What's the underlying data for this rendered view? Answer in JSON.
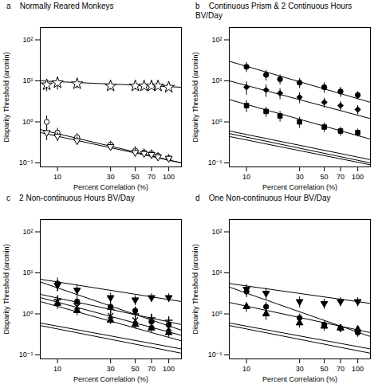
{
  "chart_data": [
    {
      "type": "line",
      "title": "a    Normally Reared Monkeys",
      "xlabel": "Percent Correlation (%)",
      "ylabel": "Disparity Threshold (arcmin)",
      "log": true,
      "xlim": [
        7,
        130
      ],
      "ylim": [
        0.08,
        200
      ],
      "xticks": [
        10,
        30,
        50,
        70,
        100
      ],
      "yticks": [
        {
          "value": 0.1,
          "label": "10⁻¹"
        },
        {
          "value": 1,
          "label": "10⁰"
        },
        {
          "value": 10,
          "label": "10¹"
        },
        {
          "value": 100,
          "label": "10²"
        }
      ],
      "series": [
        {
          "type": "line",
          "color": "black",
          "x": [
            7,
            130
          ],
          "values": [
            10.0,
            7.0
          ]
        },
        {
          "type": "scatter",
          "color": "black",
          "marker": "star_open",
          "x": [
            8,
            10,
            15,
            30,
            50,
            60,
            70,
            80,
            100
          ],
          "values": [
            8.0,
            9.0,
            8.5,
            7.5,
            7.5,
            7.5,
            7.5,
            7.5,
            7.0
          ],
          "yerr": [
            2.5,
            3.0,
            2.0,
            1.5,
            1.5,
            1.0,
            1.0,
            1.0,
            0.8
          ]
        },
        {
          "type": "line",
          "color": "black",
          "x": [
            7,
            130
          ],
          "values": [
            0.65,
            0.1
          ]
        },
        {
          "type": "scatter",
          "color": "black",
          "marker": "circle_open",
          "x": [
            8,
            10,
            15,
            30,
            50,
            60,
            70,
            80,
            100
          ],
          "values": [
            1.0,
            0.55,
            0.42,
            0.28,
            0.2,
            0.18,
            0.17,
            0.15,
            0.13
          ],
          "yerr": [
            0.4,
            0.15,
            0.1,
            0.06,
            0.05,
            0.04,
            0.04,
            0.03,
            0.03
          ]
        },
        {
          "type": "line",
          "color": "black",
          "x": [
            7,
            130
          ],
          "values": [
            0.55,
            0.1
          ]
        },
        {
          "type": "scatter",
          "color": "black",
          "marker": "triangle_down_open",
          "x": [
            8,
            10,
            15,
            30,
            50,
            60,
            70,
            80,
            100
          ],
          "values": [
            0.55,
            0.45,
            0.35,
            0.25,
            0.18,
            0.17,
            0.16,
            0.14,
            0.13
          ],
          "yerr": [
            0.2,
            0.12,
            0.08,
            0.05,
            0.04,
            0.03,
            0.03,
            0.02,
            0.02
          ]
        }
      ]
    },
    {
      "type": "line",
      "title": "b    Continuous Prism & 2 Continuous Hours BV/Day",
      "xlabel": "Percent Correlation (%)",
      "ylabel": "Disparity Threshold (arcmin)",
      "log": true,
      "xlim": [
        7,
        130
      ],
      "ylim": [
        0.08,
        200
      ],
      "xticks": [
        10,
        30,
        50,
        70,
        100
      ],
      "yticks": [
        {
          "value": 0.1,
          "label": "10⁻¹"
        },
        {
          "value": 1,
          "label": "10⁰"
        },
        {
          "value": 10,
          "label": "10¹"
        },
        {
          "value": 100,
          "label": "10²"
        }
      ],
      "series": [
        {
          "type": "line",
          "color": "black",
          "x": [
            7,
            130
          ],
          "values": [
            30.0,
            3.0
          ]
        },
        {
          "type": "scatter",
          "color": "black",
          "marker": "circle",
          "x": [
            10,
            15,
            20,
            30,
            50,
            70,
            100
          ],
          "values": [
            22.0,
            14.0,
            11.0,
            9.0,
            7.0,
            5.5,
            4.5
          ],
          "yerr": [
            6.0,
            4.0,
            3.0,
            2.5,
            2.0,
            1.5,
            1.0
          ]
        },
        {
          "type": "line",
          "color": "black",
          "x": [
            7,
            130
          ],
          "values": [
            10.0,
            1.2
          ]
        },
        {
          "type": "scatter",
          "color": "black",
          "marker": "diamond",
          "x": [
            10,
            15,
            20,
            30,
            50,
            70,
            100
          ],
          "values": [
            7.0,
            6.0,
            5.0,
            4.0,
            3.0,
            2.5,
            2.0
          ],
          "yerr": [
            2.5,
            2.0,
            1.5,
            1.2,
            0.8,
            0.6,
            0.5
          ]
        },
        {
          "type": "line",
          "color": "black",
          "x": [
            7,
            130
          ],
          "values": [
            3.5,
            0.38
          ]
        },
        {
          "type": "scatter",
          "color": "black",
          "marker": "square",
          "x": [
            10,
            15,
            20,
            30,
            50,
            70,
            100
          ],
          "values": [
            2.5,
            1.8,
            1.4,
            1.0,
            0.75,
            0.6,
            0.55
          ],
          "yerr": [
            0.8,
            0.5,
            0.4,
            0.3,
            0.2,
            0.15,
            0.12
          ]
        },
        {
          "type": "line",
          "color": "black",
          "x": [
            7,
            130
          ],
          "values": [
            0.6,
            0.12
          ]
        },
        {
          "type": "line",
          "color": "black",
          "x": [
            7,
            130
          ],
          "values": [
            0.52,
            0.1
          ]
        },
        {
          "type": "line",
          "color": "black",
          "x": [
            7,
            130
          ],
          "values": [
            0.44,
            0.09
          ]
        }
      ]
    },
    {
      "type": "line",
      "title": "c    2 Non-continuous Hours BV/Day",
      "xlabel": "Percent Correlation (%)",
      "ylabel": "Disparity Threshold (arcmin)",
      "log": true,
      "xlim": [
        7,
        130
      ],
      "ylim": [
        0.08,
        200
      ],
      "xticks": [
        10,
        30,
        50,
        70,
        100
      ],
      "yticks": [
        {
          "value": 0.1,
          "label": "10⁻¹"
        },
        {
          "value": 1,
          "label": "10⁰"
        },
        {
          "value": 10,
          "label": "10¹"
        },
        {
          "value": 100,
          "label": "10²"
        }
      ],
      "series": [
        {
          "type": "line",
          "color": "black",
          "x": [
            7,
            130
          ],
          "values": [
            7.0,
            2.0
          ]
        },
        {
          "type": "scatter",
          "color": "black",
          "marker": "triangle_down",
          "x": [
            10,
            15,
            30,
            50,
            70,
            100
          ],
          "values": [
            5.0,
            3.8,
            2.5,
            2.2,
            2.5,
            2.5
          ],
          "yerr": [
            1.5,
            1.2,
            0.7,
            0.6,
            0.6,
            0.6
          ]
        },
        {
          "type": "line",
          "color": "black",
          "x": [
            7,
            130
          ],
          "values": [
            6.0,
            0.4
          ]
        },
        {
          "type": "scatter",
          "color": "black",
          "marker": "circle",
          "x": [
            10,
            15,
            30,
            50,
            70,
            100
          ],
          "values": [
            5.5,
            2.0,
            1.5,
            1.2,
            0.65,
            0.55
          ],
          "yerr": [
            2.0,
            0.6,
            0.4,
            0.3,
            0.2,
            0.15
          ]
        },
        {
          "type": "line",
          "color": "black",
          "x": [
            7,
            130
          ],
          "values": [
            3.0,
            0.55
          ]
        },
        {
          "type": "scatter",
          "color": "black",
          "marker": "plus",
          "x": [
            10,
            15,
            30,
            50,
            70,
            100
          ],
          "values": [
            2.2,
            1.8,
            1.3,
            1.0,
            0.8,
            0.7
          ],
          "yerr": [
            0.6,
            0.5,
            0.3,
            0.25,
            0.2,
            0.15
          ]
        },
        {
          "type": "line",
          "color": "black",
          "x": [
            7,
            130
          ],
          "values": [
            2.5,
            0.3
          ]
        },
        {
          "type": "scatter",
          "color": "black",
          "marker": "x",
          "x": [
            10,
            15,
            30,
            50,
            70,
            100
          ],
          "values": [
            2.0,
            1.5,
            0.9,
            0.7,
            0.55,
            0.45
          ],
          "yerr": [
            0.5,
            0.4,
            0.2,
            0.18,
            0.12,
            0.1
          ]
        },
        {
          "type": "line",
          "color": "black",
          "x": [
            7,
            130
          ],
          "values": [
            2.0,
            0.22
          ]
        },
        {
          "type": "scatter",
          "color": "black",
          "marker": "triangle_up",
          "x": [
            10,
            15,
            30,
            50,
            70,
            100
          ],
          "values": [
            1.8,
            1.2,
            0.7,
            0.55,
            0.45,
            0.35
          ],
          "yerr": [
            0.5,
            0.3,
            0.15,
            0.12,
            0.1,
            0.08
          ]
        },
        {
          "type": "line",
          "color": "black",
          "x": [
            7,
            130
          ],
          "values": [
            0.6,
            0.14
          ]
        },
        {
          "type": "line",
          "color": "black",
          "x": [
            7,
            130
          ],
          "values": [
            0.52,
            0.11
          ]
        }
      ]
    },
    {
      "type": "line",
      "title": "d    One Non-continuous Hour BV/Day",
      "xlabel": "Percent Correlation (%)",
      "ylabel": "Disparity Threshold (arcmin)",
      "log": true,
      "xlim": [
        7,
        130
      ],
      "ylim": [
        0.08,
        200
      ],
      "xticks": [
        10,
        30,
        50,
        70,
        100
      ],
      "yticks": [
        {
          "value": 0.1,
          "label": "10⁻¹"
        },
        {
          "value": 1,
          "label": "10⁰"
        },
        {
          "value": 10,
          "label": "10¹"
        },
        {
          "value": 100,
          "label": "10²"
        }
      ],
      "series": [
        {
          "type": "line",
          "color": "black",
          "x": [
            7,
            130
          ],
          "values": [
            5.5,
            1.8
          ]
        },
        {
          "type": "scatter",
          "color": "black",
          "marker": "triangle_down",
          "x": [
            10,
            15,
            30,
            50,
            70,
            100
          ],
          "values": [
            4.0,
            3.2,
            2.0,
            1.8,
            2.0,
            2.0
          ],
          "yerr": [
            1.2,
            1.0,
            0.6,
            0.5,
            0.5,
            0.5
          ]
        },
        {
          "type": "line",
          "color": "black",
          "x": [
            7,
            130
          ],
          "values": [
            4.5,
            0.28
          ]
        },
        {
          "type": "scatter",
          "color": "black",
          "marker": "circle",
          "x": [
            10,
            15,
            30,
            50,
            70,
            100
          ],
          "values": [
            3.5,
            1.5,
            0.8,
            0.55,
            0.45,
            0.35
          ],
          "yerr": [
            1.0,
            0.4,
            0.2,
            0.12,
            0.1,
            0.08
          ]
        },
        {
          "type": "line",
          "color": "black",
          "x": [
            7,
            130
          ],
          "values": [
            1.9,
            0.35
          ]
        },
        {
          "type": "scatter",
          "color": "black",
          "marker": "triangle_up",
          "x": [
            10,
            15,
            30,
            50,
            70,
            100
          ],
          "values": [
            1.5,
            1.0,
            0.6,
            0.5,
            0.45,
            0.42
          ],
          "yerr": [
            0.4,
            0.3,
            0.15,
            0.12,
            0.1,
            0.08
          ]
        },
        {
          "type": "line",
          "color": "black",
          "x": [
            7,
            130
          ],
          "values": [
            0.6,
            0.14
          ]
        },
        {
          "type": "line",
          "color": "black",
          "x": [
            7,
            130
          ],
          "values": [
            0.52,
            0.11
          ]
        }
      ]
    }
  ]
}
